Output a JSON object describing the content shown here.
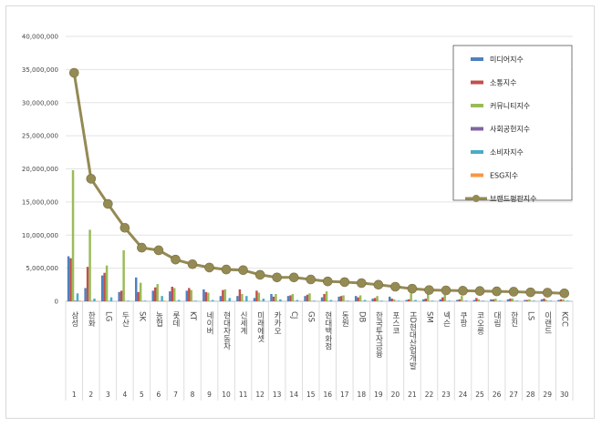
{
  "chart_data": {
    "type": "bar",
    "title": "",
    "xlabel": "",
    "ylabel": "",
    "ylim": [
      0,
      40000000
    ],
    "yticks": [
      "0",
      "5,000,000",
      "10,000,000",
      "15,000,000",
      "20,000,000",
      "25,000,000",
      "30,000,000",
      "35,000,000",
      "40,000,000"
    ],
    "grid": true,
    "legend_position": "top-right",
    "categories": [
      "삼성",
      "한화",
      "LG",
      "두산",
      "SK",
      "농협",
      "롯데",
      "KT",
      "네이버",
      "현대자동차",
      "신세계",
      "미래에셋",
      "카카오",
      "CJ",
      "GS",
      "현대백화점",
      "동원",
      "DB",
      "한국투자금융",
      "포스코",
      "HD현대산업개발",
      "SM",
      "넥슨",
      "쿠팡",
      "코오롱",
      "대림",
      "한진",
      "LS",
      "이랜드",
      "KCC"
    ],
    "ranks": [
      "1",
      "2",
      "3",
      "4",
      "5",
      "6",
      "7",
      "8",
      "9",
      "10",
      "11",
      "12",
      "13",
      "14",
      "15",
      "16",
      "17",
      "18",
      "19",
      "20",
      "21",
      "22",
      "23",
      "24",
      "25",
      "26",
      "27",
      "28",
      "29",
      "30"
    ],
    "series": [
      {
        "name": "미디어지수",
        "color": "#4f81bd",
        "values": [
          6800000,
          2000000,
          3900000,
          1400000,
          3600000,
          1600000,
          1500000,
          1600000,
          1800000,
          800000,
          800000,
          500000,
          1100000,
          800000,
          800000,
          600000,
          700000,
          800000,
          400000,
          700000,
          200000,
          300000,
          300000,
          200000,
          200000,
          300000,
          300000,
          200000,
          300000,
          200000
        ]
      },
      {
        "name": "소통지수",
        "color": "#c0504d",
        "values": [
          6500000,
          5200000,
          4300000,
          1600000,
          1400000,
          2100000,
          2200000,
          2000000,
          1400000,
          1700000,
          1800000,
          1600000,
          700000,
          900000,
          1000000,
          1100000,
          800000,
          600000,
          500000,
          400000,
          300000,
          400000,
          600000,
          300000,
          500000,
          300000,
          400000,
          200000,
          400000,
          300000
        ]
      },
      {
        "name": "커뮤니티지수",
        "color": "#9bbb59",
        "values": [
          19800000,
          10800000,
          5400000,
          7700000,
          2800000,
          2600000,
          2000000,
          1700000,
          1300000,
          1800000,
          1100000,
          1300000,
          1100000,
          1100000,
          1200000,
          1500000,
          900000,
          900000,
          800000,
          300000,
          1200000,
          1200000,
          1000000,
          800000,
          300000,
          400000,
          400000,
          300000,
          200000,
          300000
        ]
      },
      {
        "name": "사회공헌지수",
        "color": "#8064a2",
        "values": [
          100000,
          50000,
          50000,
          30000,
          30000,
          50000,
          30000,
          30000,
          30000,
          30000,
          30000,
          30000,
          30000,
          30000,
          30000,
          30000,
          30000,
          30000,
          30000,
          30000,
          30000,
          30000,
          30000,
          30000,
          30000,
          30000,
          30000,
          30000,
          30000,
          30000
        ]
      },
      {
        "name": "소비자지수",
        "color": "#4bacc6",
        "values": [
          1200000,
          400000,
          600000,
          100000,
          100000,
          800000,
          200000,
          100000,
          200000,
          500000,
          800000,
          400000,
          300000,
          200000,
          100000,
          200000,
          100000,
          200000,
          100000,
          100000,
          200000,
          100000,
          100000,
          100000,
          100000,
          100000,
          100000,
          100000,
          100000,
          100000
        ]
      },
      {
        "name": "ESG지수",
        "color": "#f79646",
        "values": [
          100000,
          50000,
          0,
          0,
          0,
          100000,
          0,
          0,
          0,
          0,
          0,
          0,
          0,
          0,
          0,
          0,
          0,
          0,
          0,
          0,
          0,
          0,
          0,
          0,
          0,
          0,
          0,
          0,
          0,
          0
        ]
      },
      {
        "name": "브랜드평판지수",
        "color": "#948a54",
        "type": "line",
        "values": [
          34500000,
          18500000,
          14700000,
          11100000,
          8100000,
          7700000,
          6300000,
          5600000,
          5100000,
          4800000,
          4700000,
          4000000,
          3600000,
          3600000,
          3300000,
          3000000,
          2900000,
          2750000,
          2500000,
          2200000,
          1900000,
          1700000,
          1650000,
          1600000,
          1550000,
          1500000,
          1450000,
          1350000,
          1300000,
          1200000
        ]
      }
    ]
  }
}
